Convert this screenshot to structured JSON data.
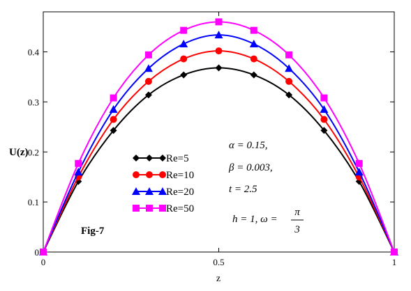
{
  "chart_data": {
    "type": "line",
    "figure_label": "Fig-7",
    "xlabel": "z",
    "ylabel": "U(z)",
    "xlim": [
      0,
      1
    ],
    "ylim": [
      0,
      0.48
    ],
    "x_ticks": [
      0,
      0.5,
      1
    ],
    "y_ticks": [
      0,
      0.1,
      0.2,
      0.3,
      0.4
    ],
    "x_tick_labels": [
      "0",
      "0.5",
      "1"
    ],
    "y_tick_labels": [
      "0",
      "0.1",
      "0.2",
      "0.3",
      "0.4"
    ],
    "grid": false,
    "legend_position": "lower-left",
    "x": [
      0,
      0.1,
      0.2,
      0.3,
      0.4,
      0.5,
      0.6,
      0.7,
      0.8,
      0.9,
      1.0
    ],
    "series": [
      {
        "name": "Re=5",
        "color": "#000000",
        "marker": "diamond",
        "values": [
          0,
          0.141,
          0.243,
          0.314,
          0.354,
          0.368,
          0.354,
          0.314,
          0.243,
          0.141,
          0
        ]
      },
      {
        "name": "Re=10",
        "color": "#ff0000",
        "marker": "circle",
        "values": [
          0,
          0.15,
          0.265,
          0.341,
          0.386,
          0.402,
          0.386,
          0.341,
          0.265,
          0.15,
          0
        ]
      },
      {
        "name": "Re=20",
        "color": "#0000ff",
        "marker": "triangle",
        "values": [
          0,
          0.16,
          0.285,
          0.367,
          0.416,
          0.434,
          0.416,
          0.367,
          0.285,
          0.16,
          0
        ]
      },
      {
        "name": "Re=50",
        "color": "#ff00ff",
        "marker": "square",
        "values": [
          0,
          0.177,
          0.308,
          0.394,
          0.443,
          0.46,
          0.443,
          0.394,
          0.308,
          0.177,
          0
        ]
      }
    ],
    "annotations": {
      "alpha_line": "α = 0.15,",
      "beta_line": "β = 0.003,",
      "t_line": "t = 2.5",
      "h_omega_prefix": "h = 1, ω =",
      "frac_numerator": "π",
      "frac_denominator": "3"
    }
  }
}
